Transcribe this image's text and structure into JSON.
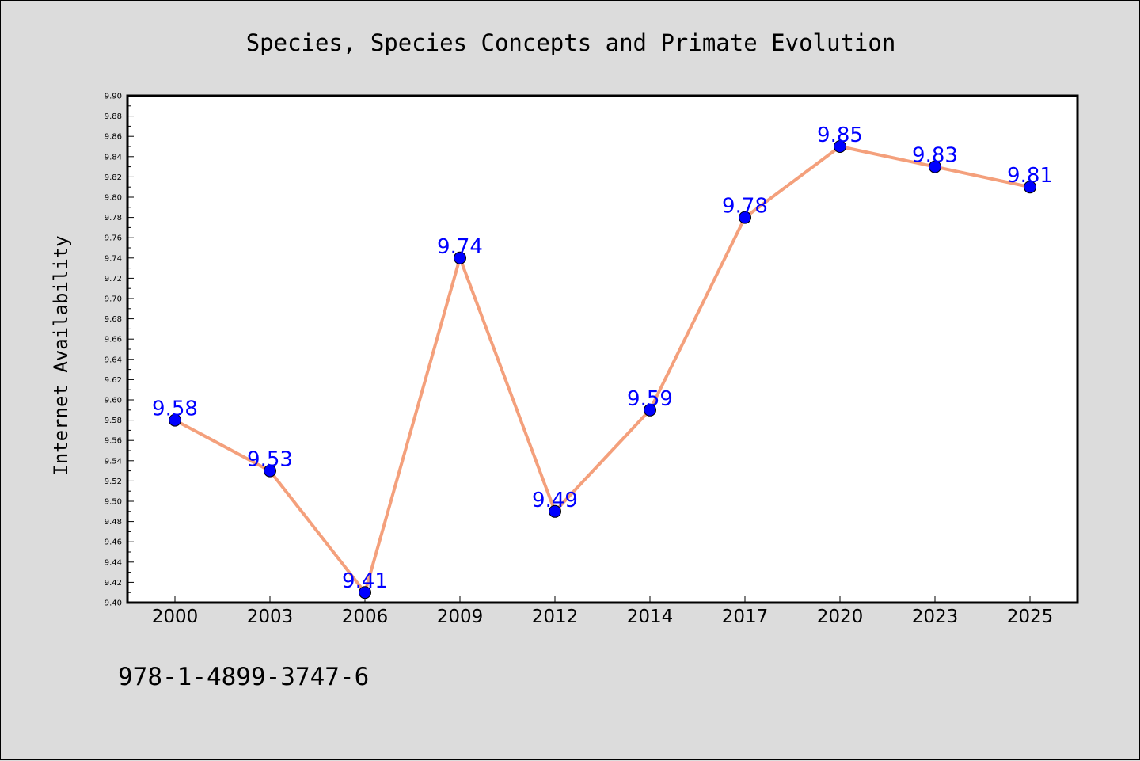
{
  "footer_text": "978-1-4899-3747-6",
  "colors": {
    "background": "#dcdcdc",
    "plot_bg": "#ffffff",
    "line": "#f4a07c",
    "marker": "#0000ff",
    "label": "#0000ff"
  },
  "chart_data": {
    "type": "line",
    "title": "Species, Species Concepts and Primate Evolution",
    "xlabel": "",
    "ylabel": "Internet Availability",
    "categories": [
      "2000",
      "2003",
      "2006",
      "2009",
      "2012",
      "2014",
      "2017",
      "2020",
      "2023",
      "2025"
    ],
    "series": [
      {
        "values": [
          9.58,
          9.53,
          9.41,
          9.74,
          9.49,
          9.59,
          9.78,
          9.85,
          9.83,
          9.81
        ]
      }
    ],
    "ylim": [
      9.4,
      9.9
    ],
    "ytick_step": 0.02,
    "grid": false,
    "data_labels": true
  }
}
